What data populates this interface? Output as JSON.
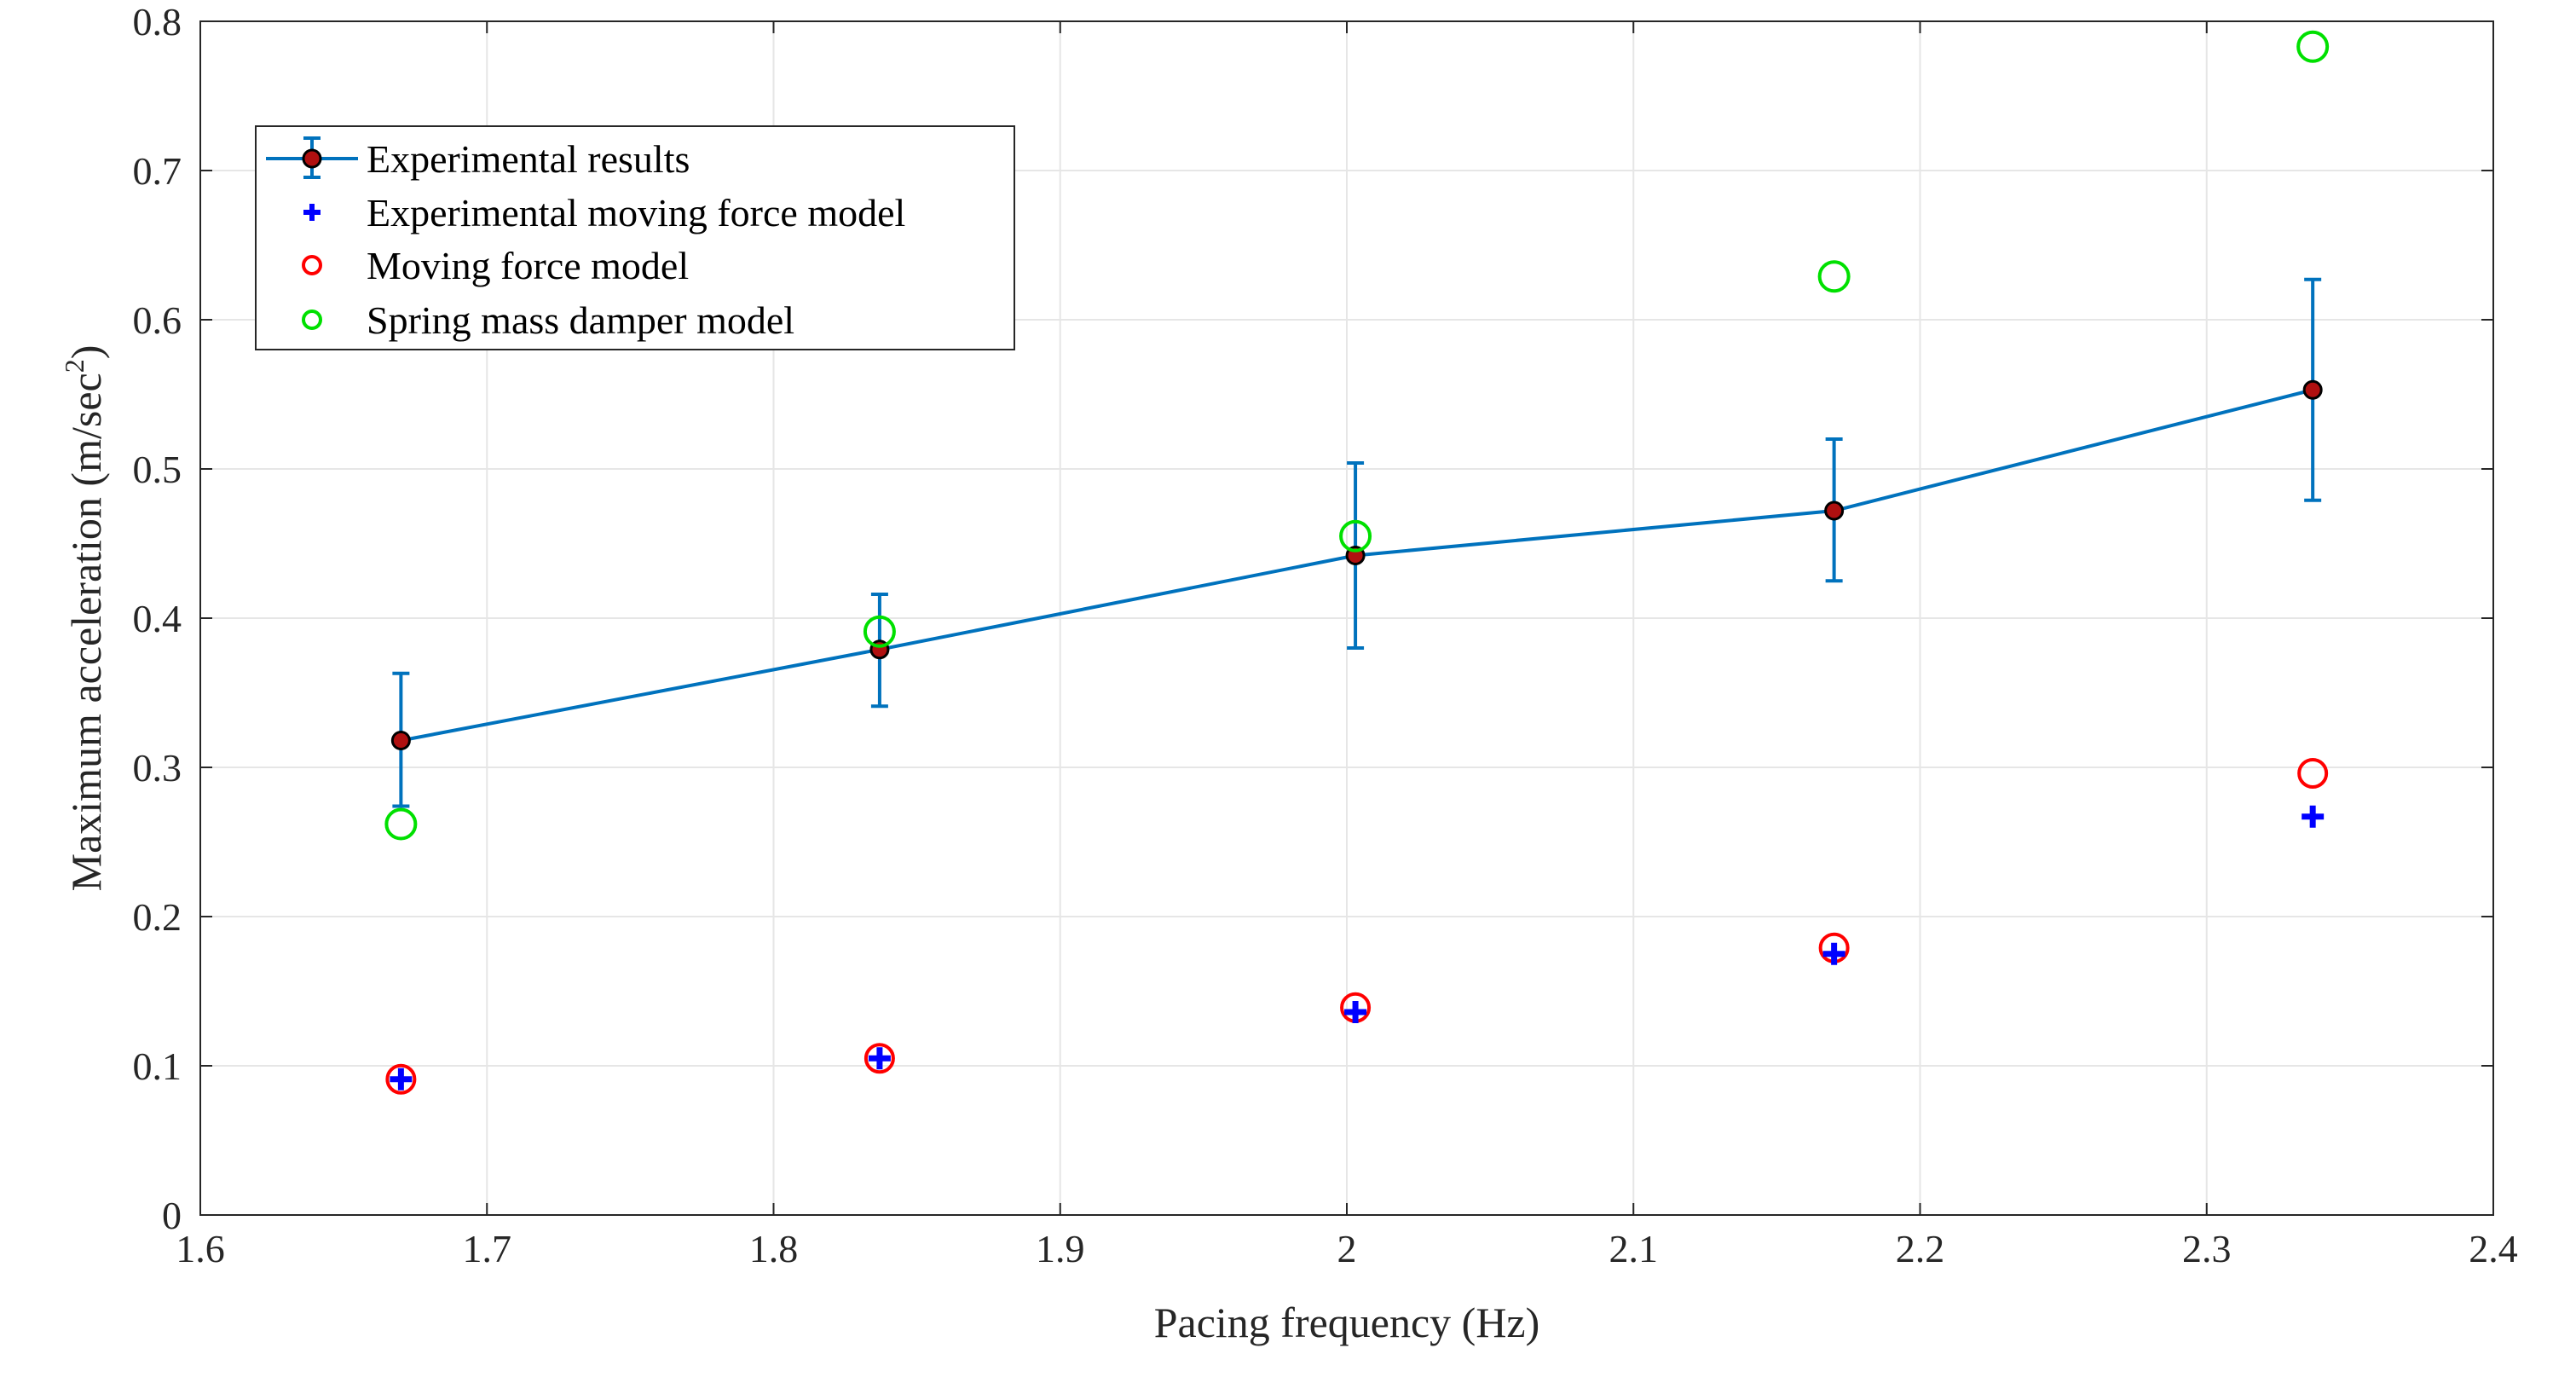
{
  "chart_data": {
    "type": "scatter",
    "title": "",
    "xlabel": "Pacing frequency (Hz)",
    "ylabel_main": "Maximum acceleration (m/sec",
    "ylabel_sup": "2",
    "ylabel_close": ")",
    "xlim": [
      1.6,
      2.4
    ],
    "ylim": [
      0,
      0.8
    ],
    "xticks": [
      1.6,
      1.7,
      1.8,
      1.9,
      2.0,
      2.1,
      2.2,
      2.3,
      2.4
    ],
    "xtick_labels": [
      "1.6",
      "1.7",
      "1.8",
      "1.9",
      "2",
      "2.1",
      "2.2",
      "2.3",
      "2.4"
    ],
    "yticks": [
      0,
      0.1,
      0.2,
      0.3,
      0.4,
      0.5,
      0.6,
      0.7,
      0.8
    ],
    "ytick_labels": [
      "0",
      "0.1",
      "0.2",
      "0.3",
      "0.4",
      "0.5",
      "0.6",
      "0.7",
      "0.8"
    ],
    "grid": true,
    "legend_position": "top-left",
    "x": [
      1.67,
      1.837,
      2.003,
      2.17,
      2.337
    ],
    "series": [
      {
        "name": "Experimental results",
        "kind": "errorbar-line",
        "color": "#0072BD",
        "marker_fill": "#B01010",
        "values": [
          0.318,
          0.379,
          0.442,
          0.472,
          0.553
        ],
        "err_upper": [
          0.363,
          0.416,
          0.504,
          0.52,
          0.627
        ],
        "err_lower": [
          0.274,
          0.341,
          0.38,
          0.425,
          0.479
        ]
      },
      {
        "name": "Experimental moving force model",
        "kind": "plus",
        "color": "#0000FF",
        "values": [
          0.091,
          0.105,
          0.136,
          0.175,
          0.267
        ]
      },
      {
        "name": "Moving force model",
        "kind": "circle",
        "color": "#FF0000",
        "values": [
          0.091,
          0.105,
          0.139,
          0.179,
          0.296
        ]
      },
      {
        "name": "Spring mass damper model",
        "kind": "circle",
        "color": "#00E000",
        "values": [
          0.262,
          0.391,
          0.455,
          0.629,
          0.783
        ]
      }
    ]
  }
}
